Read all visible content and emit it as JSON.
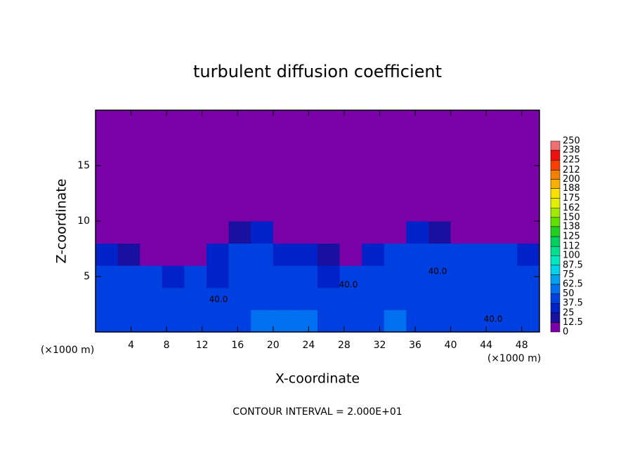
{
  "chart_data": {
    "type": "heatmap",
    "title": "turbulent diffusion coefficient",
    "x_label": "X-coordinate",
    "y_label": "Z-coordinate",
    "x_unit": "(×1000 m)",
    "y_unit": "(×1000 m)",
    "footer": "CONTOUR INTERVAL = 2.000E+01",
    "xlim": [
      0,
      50
    ],
    "ylim": [
      0,
      20
    ],
    "xticks": [
      4,
      8,
      12,
      16,
      20,
      24,
      28,
      32,
      36,
      40,
      44,
      48
    ],
    "yticks": [
      5,
      10,
      15
    ],
    "xbins": [
      0,
      2.5,
      5,
      7.5,
      10,
      12.5,
      15,
      17.5,
      20,
      22.5,
      25,
      27.5,
      30,
      32.5,
      35,
      37.5,
      40,
      42.5,
      45,
      47.5,
      50
    ],
    "ybins": [
      0,
      2,
      4,
      6,
      8,
      10,
      12,
      14,
      16,
      18,
      20
    ],
    "values": [
      [
        45,
        40,
        42,
        38,
        40,
        45,
        48,
        55,
        60,
        58,
        45,
        40,
        48,
        50,
        42,
        45,
        40,
        42,
        44,
        45
      ],
      [
        40,
        38,
        42,
        40,
        45,
        40,
        44,
        48,
        42,
        38,
        40,
        42,
        40,
        38,
        42,
        44,
        40,
        38,
        42,
        40
      ],
      [
        40,
        42,
        38,
        36,
        38,
        36,
        40,
        42,
        38,
        40,
        36,
        38,
        40,
        42,
        40,
        38,
        40,
        44,
        40,
        38
      ],
      [
        30,
        20,
        10,
        5,
        10,
        35,
        40,
        38,
        30,
        30,
        20,
        10,
        30,
        40,
        40,
        38,
        40,
        38,
        38,
        25
      ],
      [
        0,
        0,
        0,
        0,
        0,
        0,
        20,
        25,
        0,
        0,
        0,
        0,
        0,
        10,
        25,
        20,
        10,
        0,
        0,
        0
      ],
      [
        0,
        0,
        0,
        0,
        0,
        0,
        0,
        0,
        0,
        0,
        0,
        0,
        0,
        0,
        0,
        0,
        0,
        0,
        0,
        0
      ],
      [
        0,
        0,
        0,
        0,
        0,
        0,
        0,
        0,
        0,
        0,
        0,
        0,
        0,
        0,
        0,
        0,
        0,
        0,
        0,
        0
      ],
      [
        0,
        0,
        0,
        0,
        0,
        0,
        0,
        0,
        0,
        0,
        0,
        0,
        0,
        0,
        0,
        0,
        0,
        0,
        0,
        0
      ],
      [
        0,
        0,
        0,
        0,
        0,
        0,
        0,
        0,
        0,
        0,
        0,
        0,
        0,
        0,
        0,
        0,
        0,
        0,
        0,
        0
      ],
      [
        0,
        0,
        0,
        0,
        0,
        0,
        0,
        0,
        0,
        0,
        0,
        0,
        0,
        0,
        0,
        0,
        0,
        0,
        0,
        0
      ]
    ],
    "levels": [
      0,
      12.5,
      25,
      37.5,
      50,
      62.5,
      75,
      87.5,
      100,
      112,
      125,
      138,
      150,
      162,
      175,
      188,
      200,
      212,
      225,
      238,
      250
    ],
    "colors": [
      "#7a00a8",
      "#1a10a0",
      "#0022c8",
      "#0040e0",
      "#0070f0",
      "#00a0f0",
      "#00d0e8",
      "#00e8c0",
      "#00e090",
      "#00d060",
      "#20d020",
      "#60e000",
      "#a0e800",
      "#e0f000",
      "#f8e000",
      "#f8b000",
      "#f88000",
      "#f84000",
      "#f01010",
      "#f07070"
    ],
    "annotations": [
      "40.0",
      "40.0",
      "40.0",
      "40.0"
    ]
  }
}
